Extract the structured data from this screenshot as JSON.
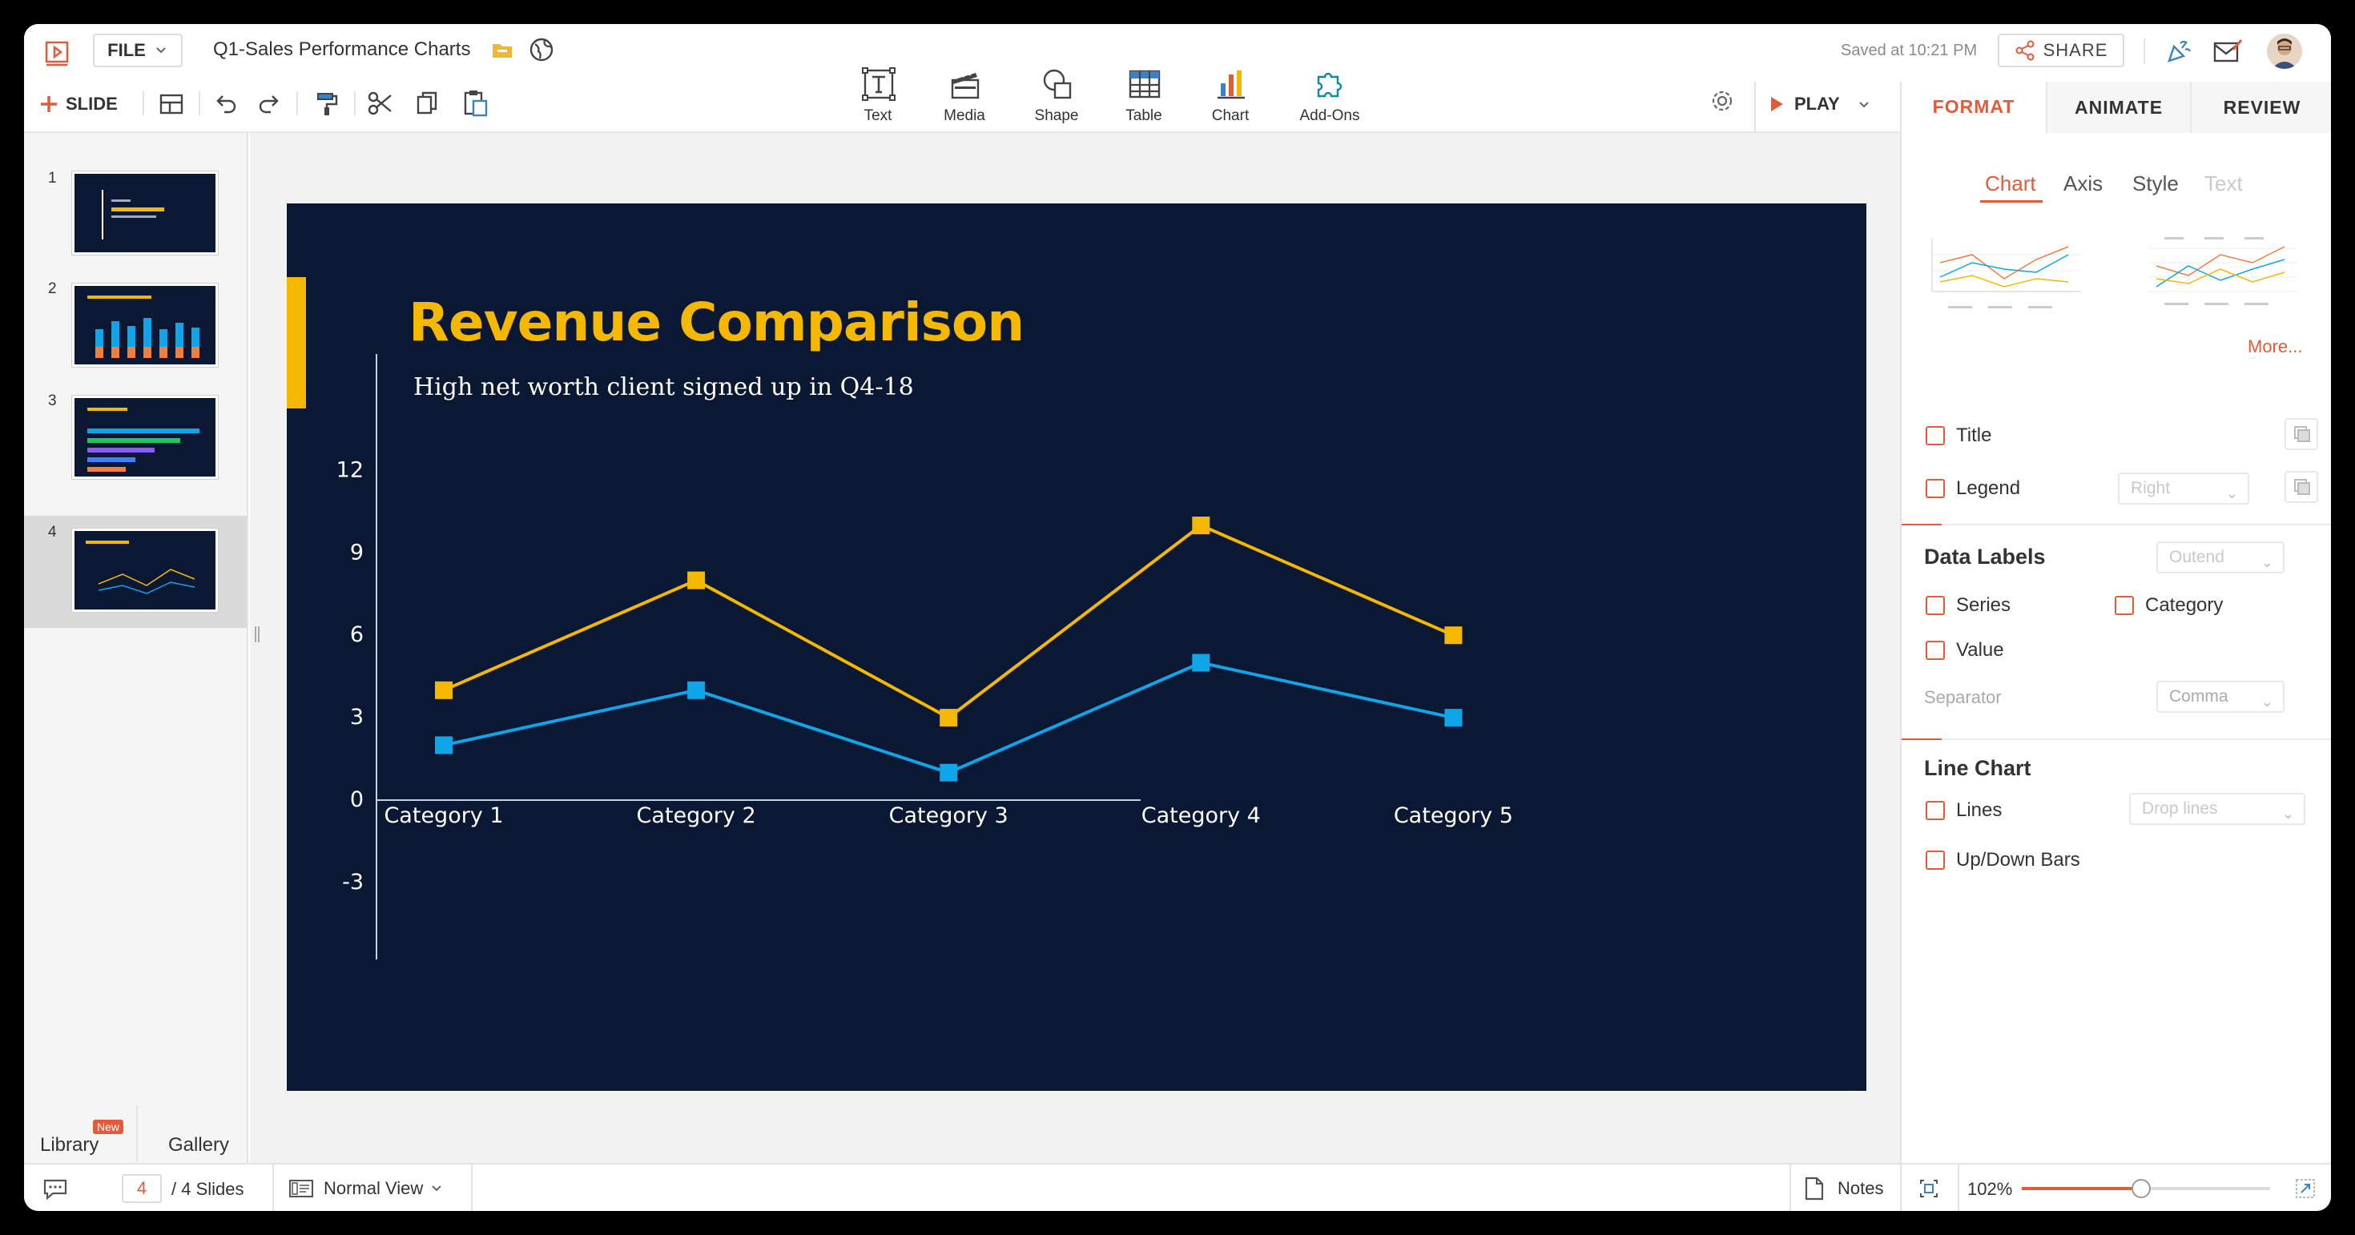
{
  "header": {
    "file_label": "FILE",
    "doc_title": "Q1-Sales Performance Charts",
    "saved_text": "Saved at 10:21 PM",
    "share_label": "SHARE",
    "slide_label": "SLIDE",
    "play_label": "PLAY",
    "insert_tools": [
      {
        "label": "Text",
        "icon": "text-box-icon"
      },
      {
        "label": "Media",
        "icon": "media-clapper-icon"
      },
      {
        "label": "Shape",
        "icon": "shape-icon"
      },
      {
        "label": "Table",
        "icon": "table-icon"
      },
      {
        "label": "Chart",
        "icon": "bar-chart-icon"
      },
      {
        "label": "Add-Ons",
        "icon": "puzzle-icon"
      }
    ]
  },
  "right_panel": {
    "tabs": [
      "FORMAT",
      "ANIMATE",
      "REVIEW"
    ],
    "active_tab": "FORMAT",
    "subtabs": [
      "Chart",
      "Axis",
      "Style",
      "Text"
    ],
    "active_subtab": "Chart",
    "more_label": "More...",
    "title_label": "Title",
    "legend_label": "Legend",
    "legend_position": "Right",
    "data_labels_heading": "Data Labels",
    "data_labels_position": "Outend",
    "series_label": "Series",
    "category_label": "Category",
    "value_label": "Value",
    "separator_label": "Separator",
    "separator_value": "Comma",
    "line_chart_heading": "Line Chart",
    "lines_label": "Lines",
    "lines_value": "Drop lines",
    "updown_label": "Up/Down Bars",
    "accent_color": "#e45b3a"
  },
  "left_panel": {
    "slide_numbers": [
      "1",
      "2",
      "3",
      "4"
    ],
    "library_label": "Library",
    "new_badge": "New",
    "gallery_label": "Gallery"
  },
  "slide": {
    "title": "Revenue Comparison",
    "subtitle": "High net worth client signed up in Q4-18",
    "accent": "#f5b800",
    "background": "#0b1834"
  },
  "chart_data": {
    "type": "line",
    "categories": [
      "Category 1",
      "Category 2",
      "Category 3",
      "Category 4",
      "Category 5"
    ],
    "series": [
      {
        "values": [
          4,
          8,
          3,
          10,
          6
        ],
        "color": "#f5b800"
      },
      {
        "values": [
          2,
          4,
          1,
          5,
          3
        ],
        "color": "#0ea5e9"
      }
    ],
    "yticks": [
      12,
      9,
      6,
      3,
      0,
      -3
    ],
    "ylim": [
      -3,
      12
    ],
    "legend": "none",
    "grid": false
  },
  "bottom_bar": {
    "current_slide": "4",
    "total_slides": "/ 4 Slides",
    "view_label": "Normal View",
    "notes_label": "Notes",
    "zoom": "102%",
    "zoom_fraction": 0.48
  }
}
